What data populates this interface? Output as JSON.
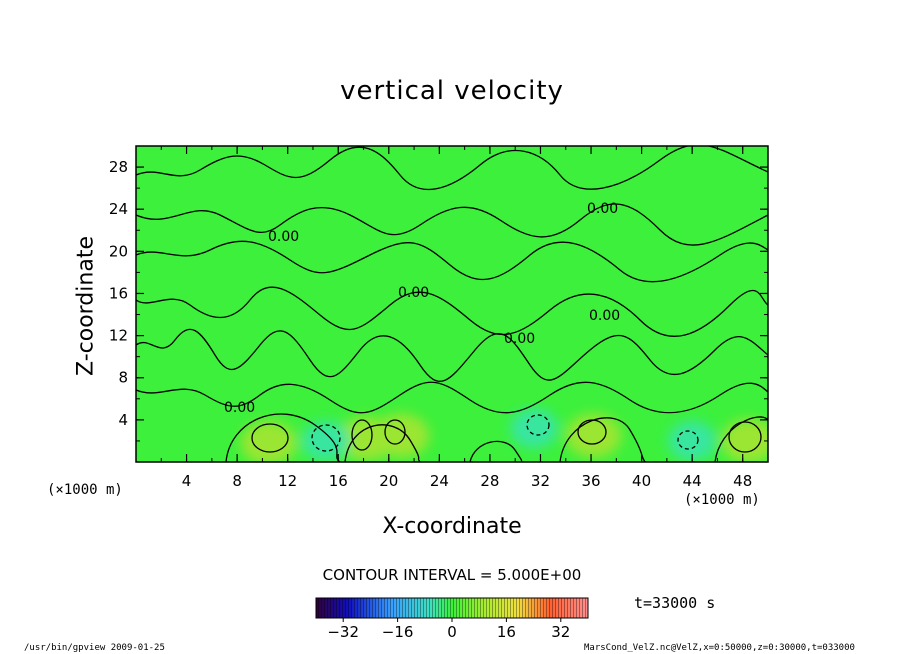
{
  "chart_data": {
    "type": "heatmap",
    "title": "vertical velocity",
    "xlabel": "X-coordinate",
    "ylabel": "Z-coordinate",
    "x_unit_left": "(×1000 m)",
    "x_unit_right": "(×1000 m)",
    "xlim": [
      0,
      50
    ],
    "ylim": [
      0,
      30
    ],
    "x_ticks": [
      "4",
      "8",
      "12",
      "16",
      "20",
      "24",
      "28",
      "32",
      "36",
      "40",
      "44",
      "48"
    ],
    "y_ticks": [
      "4",
      "8",
      "12",
      "16",
      "20",
      "24",
      "28"
    ],
    "contour_labels": [
      "0.00",
      "0.00",
      "0.00",
      "0.00",
      "0.00",
      "0.00"
    ],
    "contour_interval": "CONTOUR INTERVAL = 5.000E+00",
    "time_label": "t=33000 s",
    "colorbar": {
      "range": [
        -40,
        40
      ],
      "tick_labels": [
        "−32",
        "−16",
        "0",
        "16",
        "32"
      ],
      "tick_values": [
        -32,
        -16,
        0,
        16,
        32
      ]
    },
    "positive_cells": [
      {
        "x": 10.5,
        "z": 1.8
      },
      {
        "x": 18.2,
        "z": 2.2
      },
      {
        "x": 21.0,
        "z": 2.5
      },
      {
        "x": 36.2,
        "z": 2.5
      },
      {
        "x": 48.5,
        "z": 2.0
      }
    ],
    "negative_cells": [
      {
        "x": 15.0,
        "z": 2.0
      },
      {
        "x": 31.5,
        "z": 3.2
      },
      {
        "x": 44.0,
        "z": 2.0
      }
    ],
    "colors": {
      "field_base": "#3cf03c",
      "positive_tint": "#9be633",
      "negative_tint": "#38e6a0"
    }
  },
  "footer": {
    "left": "/usr/bin/gpview  2009-01-25",
    "right": "MarsCond_VelZ.nc@VelZ,x=0:50000,z=0:30000,t=033000"
  }
}
